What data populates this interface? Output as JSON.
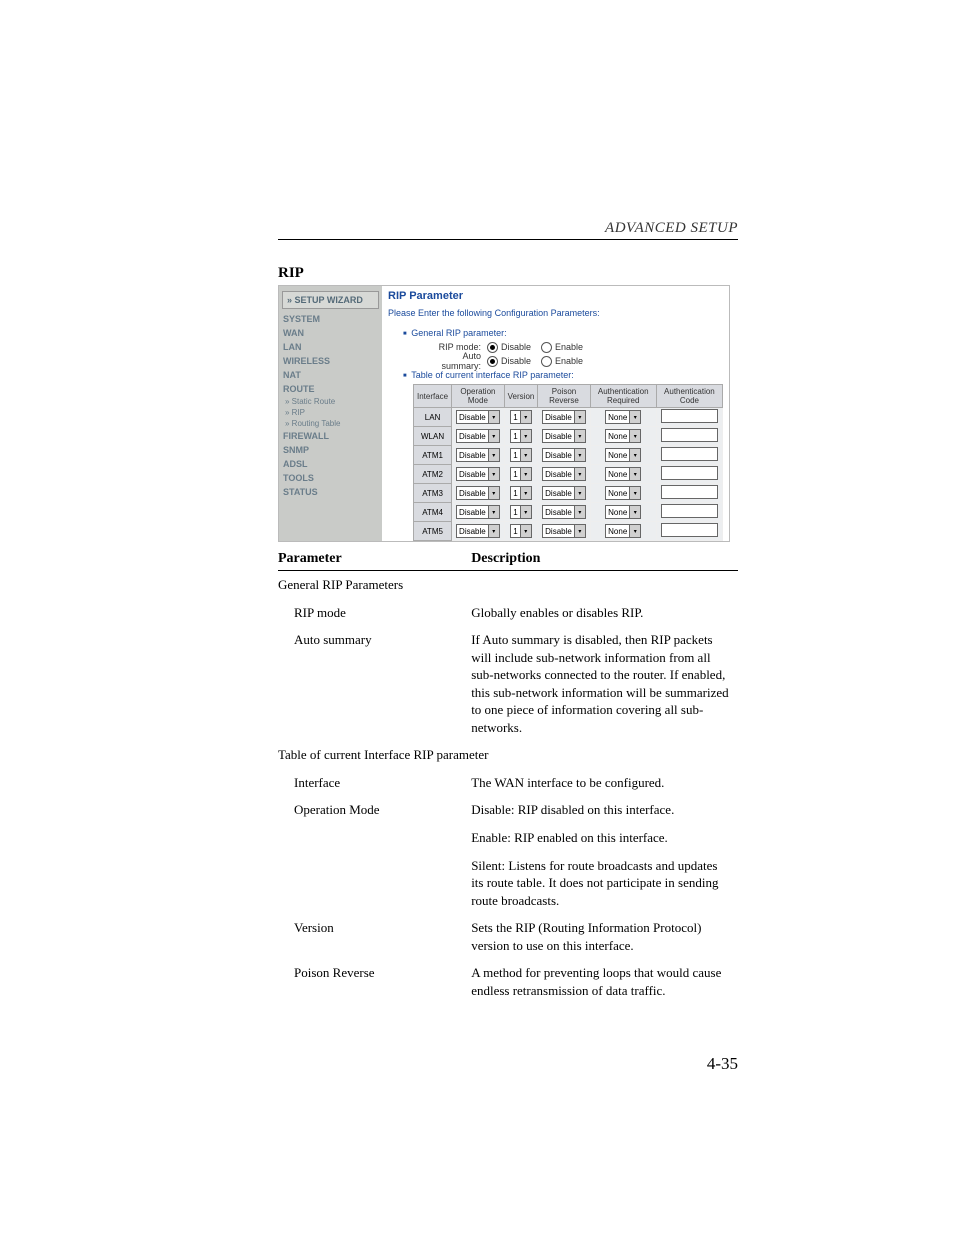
{
  "header": {
    "title": "ADVANCED SETUP"
  },
  "section_heading": "RIP",
  "sidebar": {
    "wizard": "» SETUP WIZARD",
    "items": [
      "SYSTEM",
      "WAN",
      "LAN",
      "WIRELESS",
      "NAT",
      "ROUTE"
    ],
    "subs": [
      "» Static Route",
      "» RIP",
      "» Routing Table"
    ],
    "items2": [
      "FIREWALL",
      "SNMP",
      "ADSL",
      "TOOLS",
      "STATUS"
    ]
  },
  "panel": {
    "title": "RIP Parameter",
    "prompt": "Please Enter the following Configuration Parameters:",
    "general_label": "General RIP parameter:",
    "rip_mode_label": "RIP mode:",
    "auto_summary_label": "Auto summary:",
    "disable": "Disable",
    "enable": "Enable",
    "table_label": "Table of current interface RIP parameter:",
    "cols": [
      "Interface",
      "Operation Mode",
      "Version",
      "Poison Reverse",
      "Authentication Required",
      "Authentication Code"
    ],
    "rows": [
      {
        "iface": "LAN",
        "op": "Disable",
        "ver": "1",
        "pr": "Disable",
        "auth": "None",
        "code": ""
      },
      {
        "iface": "WLAN",
        "op": "Disable",
        "ver": "1",
        "pr": "Disable",
        "auth": "None",
        "code": ""
      },
      {
        "iface": "ATM1",
        "op": "Disable",
        "ver": "1",
        "pr": "Disable",
        "auth": "None",
        "code": ""
      },
      {
        "iface": "ATM2",
        "op": "Disable",
        "ver": "1",
        "pr": "Disable",
        "auth": "None",
        "code": ""
      },
      {
        "iface": "ATM3",
        "op": "Disable",
        "ver": "1",
        "pr": "Disable",
        "auth": "None",
        "code": ""
      },
      {
        "iface": "ATM4",
        "op": "Disable",
        "ver": "1",
        "pr": "Disable",
        "auth": "None",
        "code": ""
      },
      {
        "iface": "ATM5",
        "op": "Disable",
        "ver": "1",
        "pr": "Disable",
        "auth": "None",
        "code": ""
      }
    ]
  },
  "ptable": {
    "h1": "Parameter",
    "h2": "Description",
    "grp1": "General RIP Parameters",
    "r1p": "RIP mode",
    "r1d": "Globally enables or disables RIP.",
    "r2p": "Auto summary",
    "r2d": "If Auto summary is disabled, then RIP packets will include sub-network information from all sub-networks connected to the router. If enabled, this sub-network information will be summarized to one piece of information covering all sub-networks.",
    "grp2": "Table of current Interface RIP parameter",
    "r3p": "Interface",
    "r3d": "The WAN interface to be configured.",
    "r4p": "Operation Mode",
    "r4d1": "Disable: RIP disabled on this interface.",
    "r4d2": "Enable: RIP enabled on this interface.",
    "r4d3": "Silent: Listens for route broadcasts and updates its route table. It does not participate in sending route broadcasts.",
    "r5p": "Version",
    "r5d": "Sets the RIP (Routing Information Protocol) version to use on this interface.",
    "r6p": "Poison Reverse",
    "r6d": "A method for preventing loops that would cause endless retransmission of data traffic."
  },
  "page_number": "4-35"
}
